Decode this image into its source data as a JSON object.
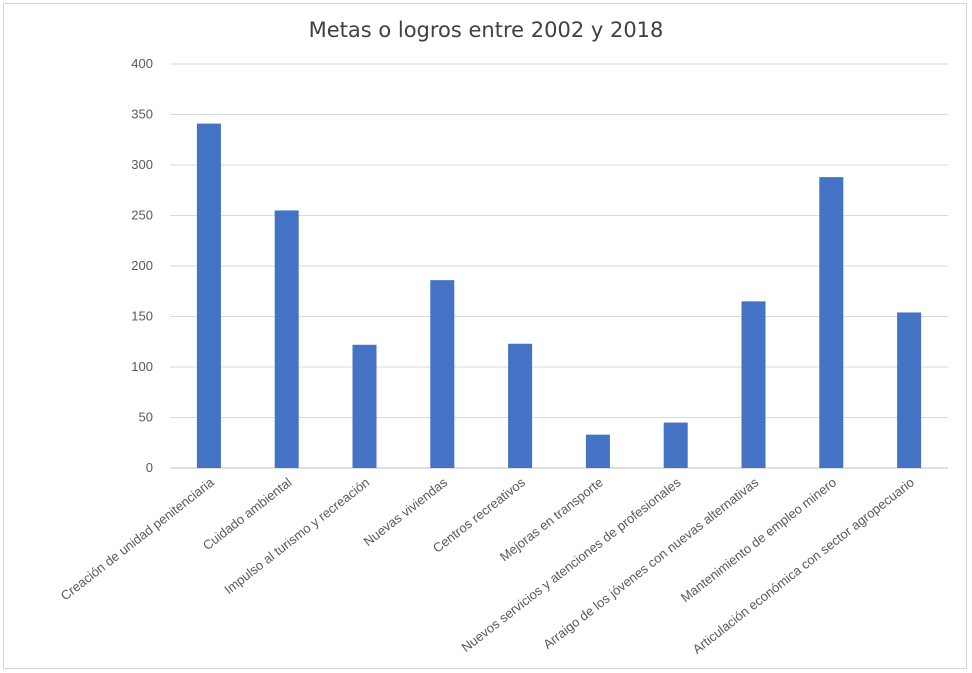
{
  "chart_data": {
    "type": "bar",
    "title": "Metas o logros entre 2002 y 2018",
    "xlabel": "",
    "ylabel": "",
    "ylim": [
      0,
      400
    ],
    "yticks": [
      0,
      50,
      100,
      150,
      200,
      250,
      300,
      350,
      400
    ],
    "grid": true,
    "legend": "none",
    "bar_color": "#4472C4",
    "categories": [
      "Creación de unidad penitenciaria",
      "Cuidado ambiental",
      "Impulso al turismo y recreación",
      "Nuevas viviendas",
      "Centros recreativos",
      "Mejoras en transporte",
      "Nuevos servicios y atenciones de profesionales",
      "Arraigo de los jóvenes con nuevas alternativas",
      "Mantenimiento de empleo minero",
      "Articulación económica con sector agropecuario"
    ],
    "values": [
      341,
      255,
      122,
      186,
      123,
      33,
      45,
      165,
      288,
      154
    ]
  }
}
